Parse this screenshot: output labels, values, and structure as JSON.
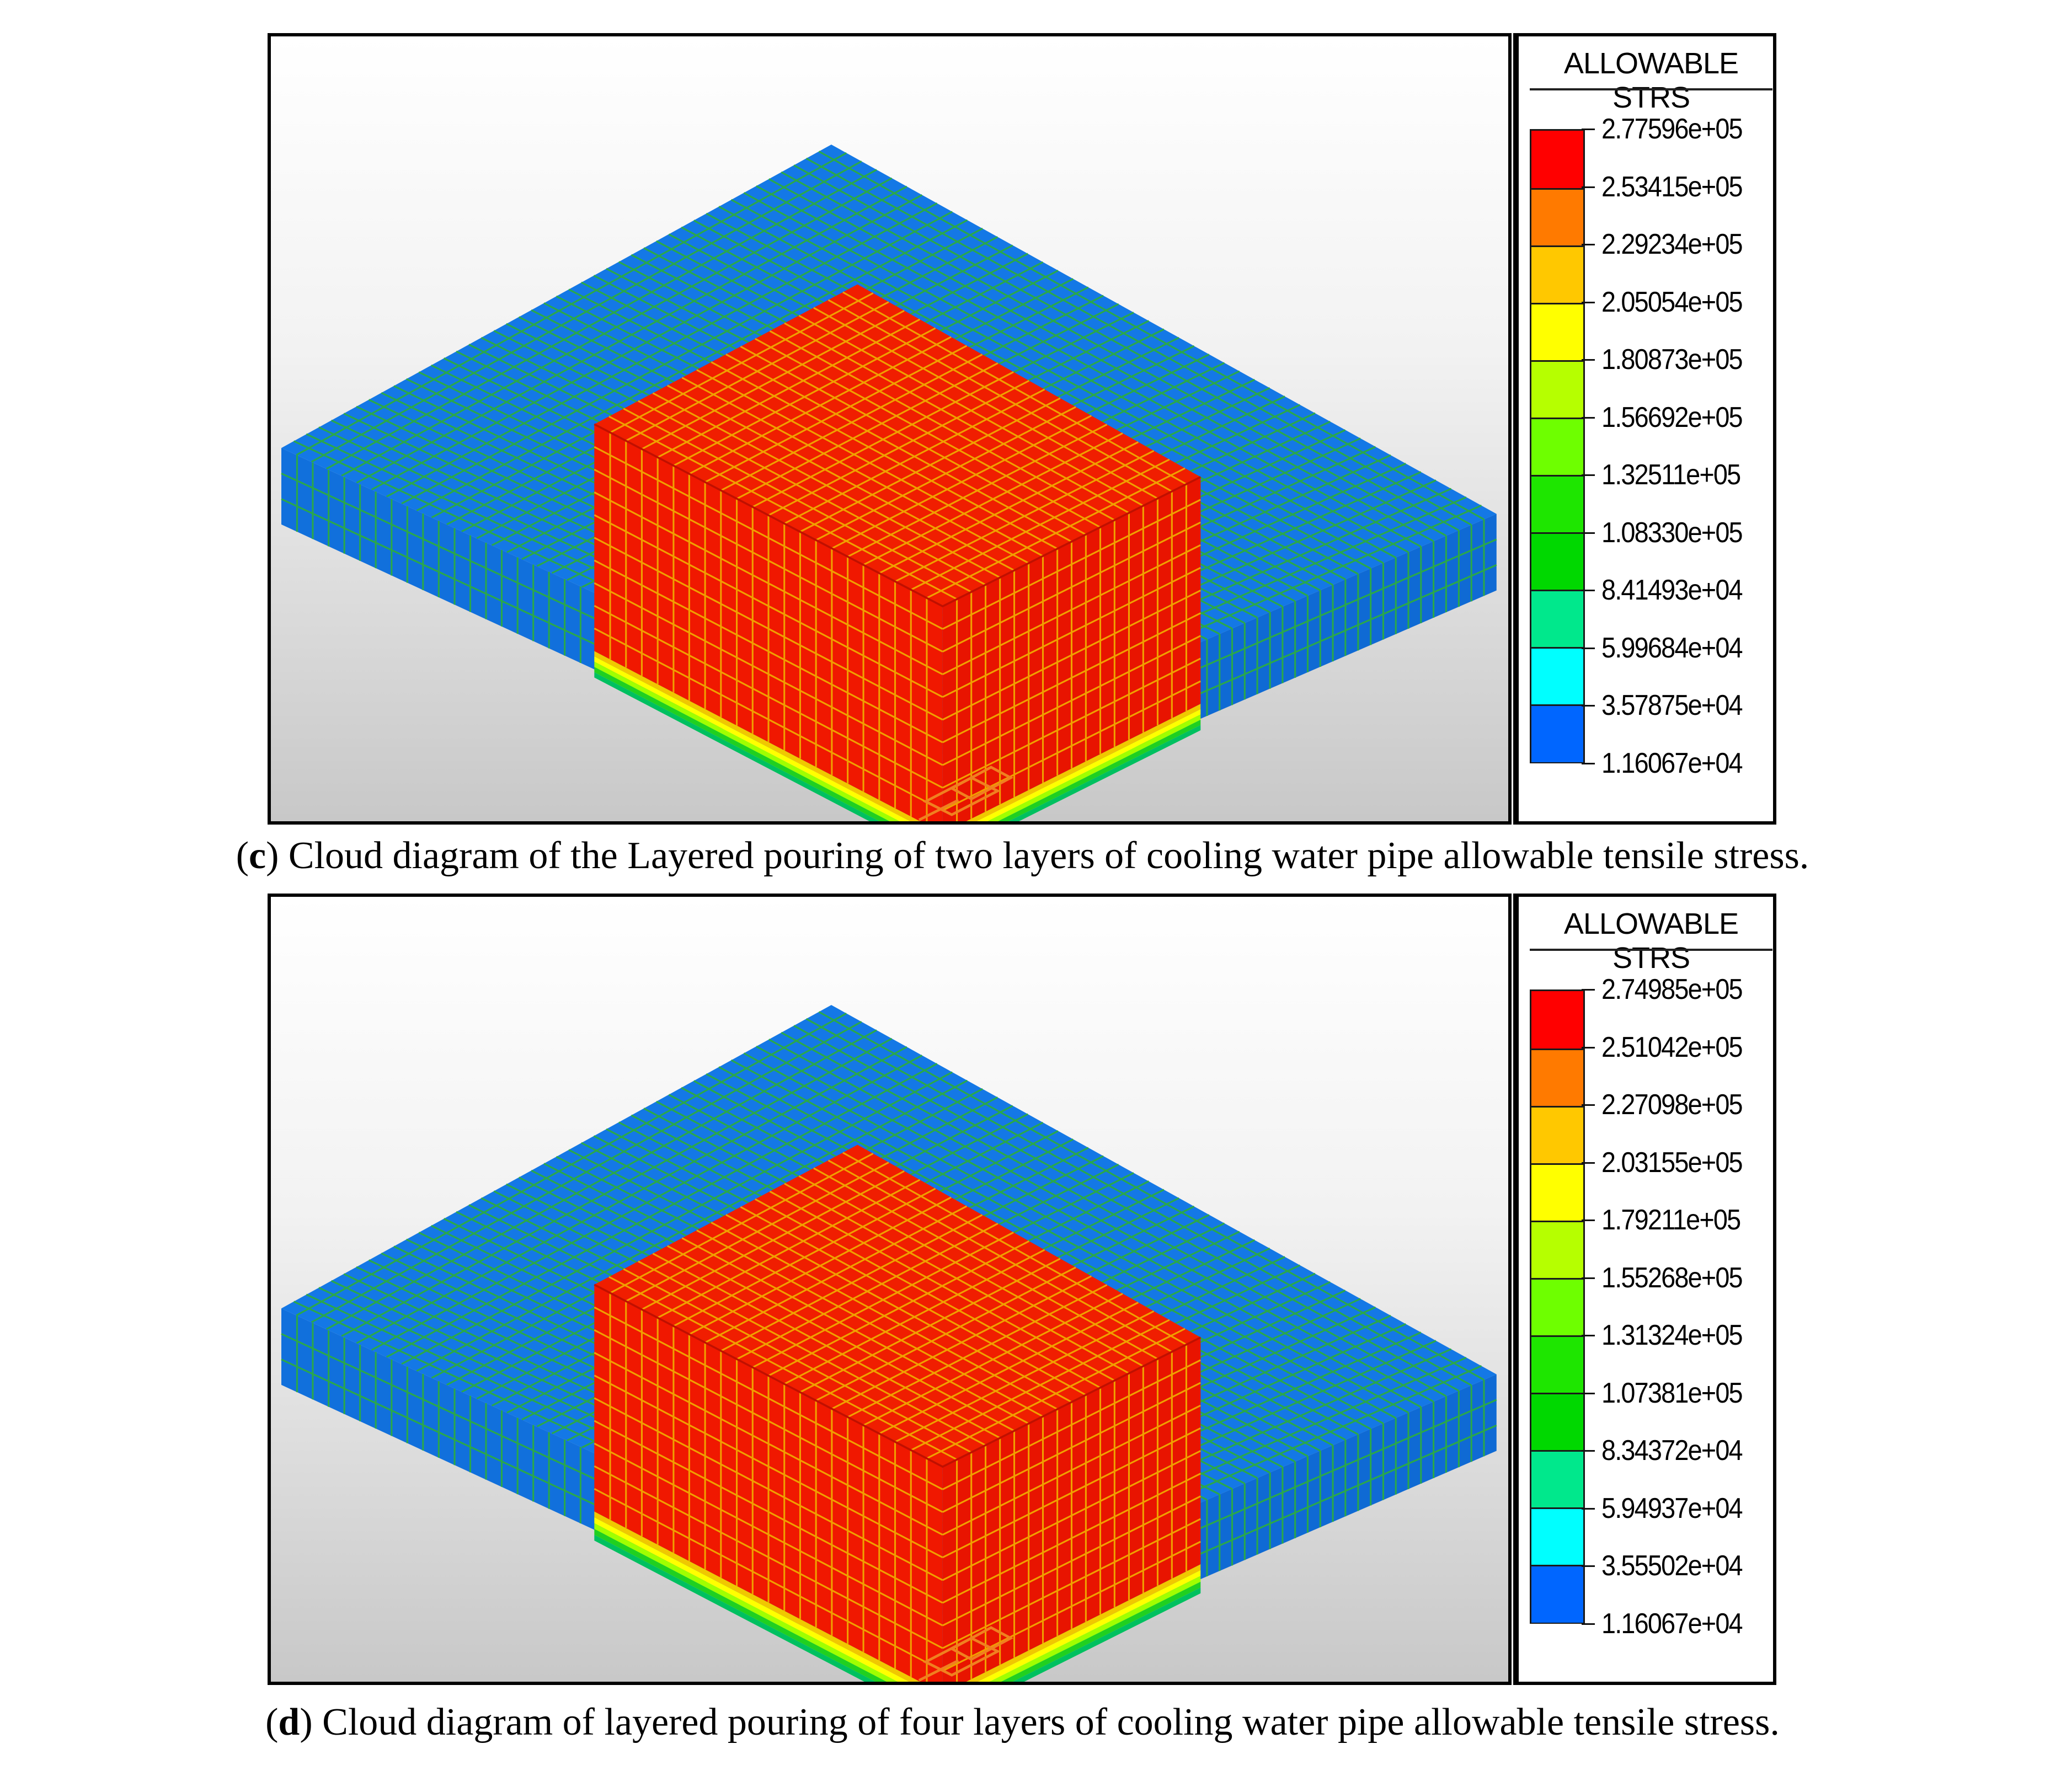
{
  "panels": [
    {
      "id": "c",
      "legend_title": "ALLOWABLE STRS",
      "legend_values": [
        "2.77596e+05",
        "2.53415e+05",
        "2.29234e+05",
        "2.05054e+05",
        "1.80873e+05",
        "1.56692e+05",
        "1.32511e+05",
        "1.08330e+05",
        "8.41493e+04",
        "5.99684e+04",
        "3.57875e+04",
        "1.16067e+04"
      ],
      "caption_letter": "c",
      "caption_text": ") Cloud diagram of the Layered pouring of two layers of cooling water pipe allowable tensile stress."
    },
    {
      "id": "d",
      "legend_title": "ALLOWABLE STRS",
      "legend_values": [
        "2.74985e+05",
        "2.51042e+05",
        "2.27098e+05",
        "2.03155e+05",
        "1.79211e+05",
        "1.55268e+05",
        "1.31324e+05",
        "1.07381e+05",
        "8.34372e+04",
        "5.94937e+04",
        "3.55502e+04",
        "1.16067e+04"
      ],
      "caption_letter": "d",
      "caption_text": ") Cloud diagram of layered pouring of four layers of cooling water pipe allowable tensile stress."
    }
  ],
  "caption_open_paren": "(",
  "legend_colors": [
    "#ff0000",
    "#ff7a00",
    "#ffc800",
    "#ffff00",
    "#b6ff00",
    "#6eff00",
    "#1ee600",
    "#00d800",
    "#00e88c",
    "#00ffff",
    "#0066ff"
  ],
  "model_colors": {
    "base": "#1478e6",
    "block": "#f01e00",
    "grid_on_blue": "#2aa84a",
    "grid_on_red": "#f0a000",
    "band": [
      "#f0c800",
      "#ffff00",
      "#a0ff00",
      "#20d020",
      "#00c060"
    ]
  }
}
